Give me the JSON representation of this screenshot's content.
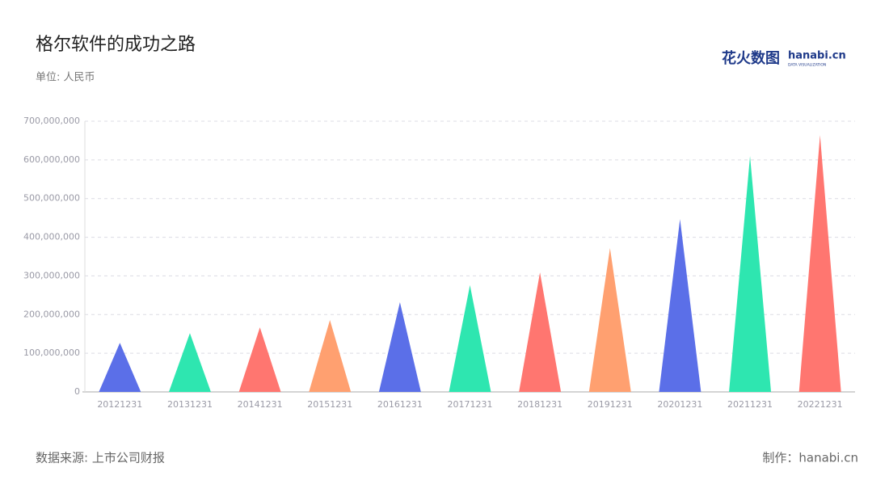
{
  "chart_data": {
    "type": "bar",
    "mark_shape": "triangle",
    "title": "格尔软件的成功之路",
    "subtitle": "单位: 人民币",
    "source": "数据来源: 上市公司财报",
    "credit": "制作：hanabi.cn",
    "logo": {
      "brand": "花火数图",
      "site": "hanabi.cn",
      "tagline": "DATA VISUALIZATION"
    },
    "categories": [
      "20121231",
      "20131231",
      "20141231",
      "20151231",
      "20161231",
      "20171231",
      "20181231",
      "20191231",
      "20201231",
      "20211231",
      "20221231"
    ],
    "values": [
      127000000,
      152000000,
      167000000,
      186000000,
      232000000,
      276000000,
      309000000,
      372000000,
      447000000,
      610000000,
      664000000
    ],
    "colors": [
      "#5b6fe8",
      "#2ee6b0",
      "#ff7670",
      "#ffa070",
      "#5b6fe8",
      "#2ee6b0",
      "#ff7670",
      "#ffa070",
      "#5b6fe8",
      "#2ee6b0",
      "#ff7670"
    ],
    "ylim": [
      0,
      700000000
    ],
    "yticks": [
      0,
      {
        "value": 100000000,
        "label": "100,000,000"
      },
      {
        "value": 200000000,
        "label": "200,000,000"
      },
      {
        "value": 300000000,
        "label": "300,000,000"
      },
      {
        "value": 400000000,
        "label": "400,000,000"
      },
      {
        "value": 500000000,
        "label": "500,000,000"
      },
      {
        "value": 600000000,
        "label": "600,000,000"
      },
      {
        "value": 700000000,
        "label": "700,000,000"
      }
    ],
    "grid": true
  }
}
